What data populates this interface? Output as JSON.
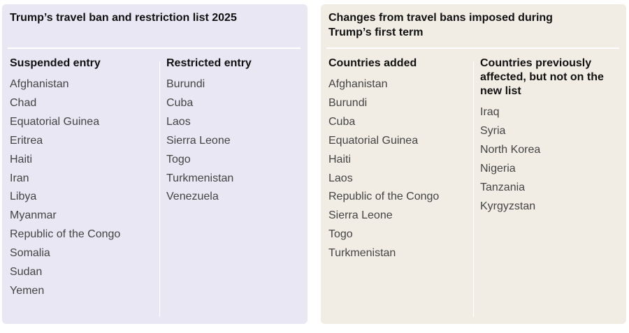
{
  "left_panel": {
    "title": "Trump’s travel ban and restriction list 2025",
    "suspended": {
      "header": "Suspended entry",
      "items": [
        "Afghanistan",
        "Chad",
        "Equatorial Guinea",
        "Eritrea",
        "Haiti",
        "Iran",
        "Libya",
        "Myanmar",
        "Republic of the Congo",
        "Somalia",
        "Sudan",
        "Yemen"
      ]
    },
    "restricted": {
      "header": "Restricted entry",
      "items": [
        "Burundi",
        "Cuba",
        "Laos",
        "Sierra Leone",
        "Togo",
        "Turkmenistan",
        "Venezuela"
      ]
    }
  },
  "right_panel": {
    "title": "Changes from travel bans imposed during Trump’s first term",
    "added": {
      "header": "Countries added",
      "items": [
        "Afghanistan",
        "Burundi",
        "Cuba",
        "Equatorial Guinea",
        "Haiti",
        "Laos",
        "Republic of the Congo",
        "Sierra Leone",
        "Togo",
        "Turkmenistan"
      ]
    },
    "previous": {
      "header": "Countries previously affected, but not on the new list",
      "items": [
        "Iraq",
        "Syria",
        "North Korea",
        "Nigeria",
        "Tanzania",
        "Kyrgyzstan"
      ]
    }
  },
  "colors": {
    "left_panel_bg": "#e8e7f3",
    "right_panel_bg": "#f1ede5",
    "heading_text": "#111111",
    "body_text": "#444444"
  }
}
